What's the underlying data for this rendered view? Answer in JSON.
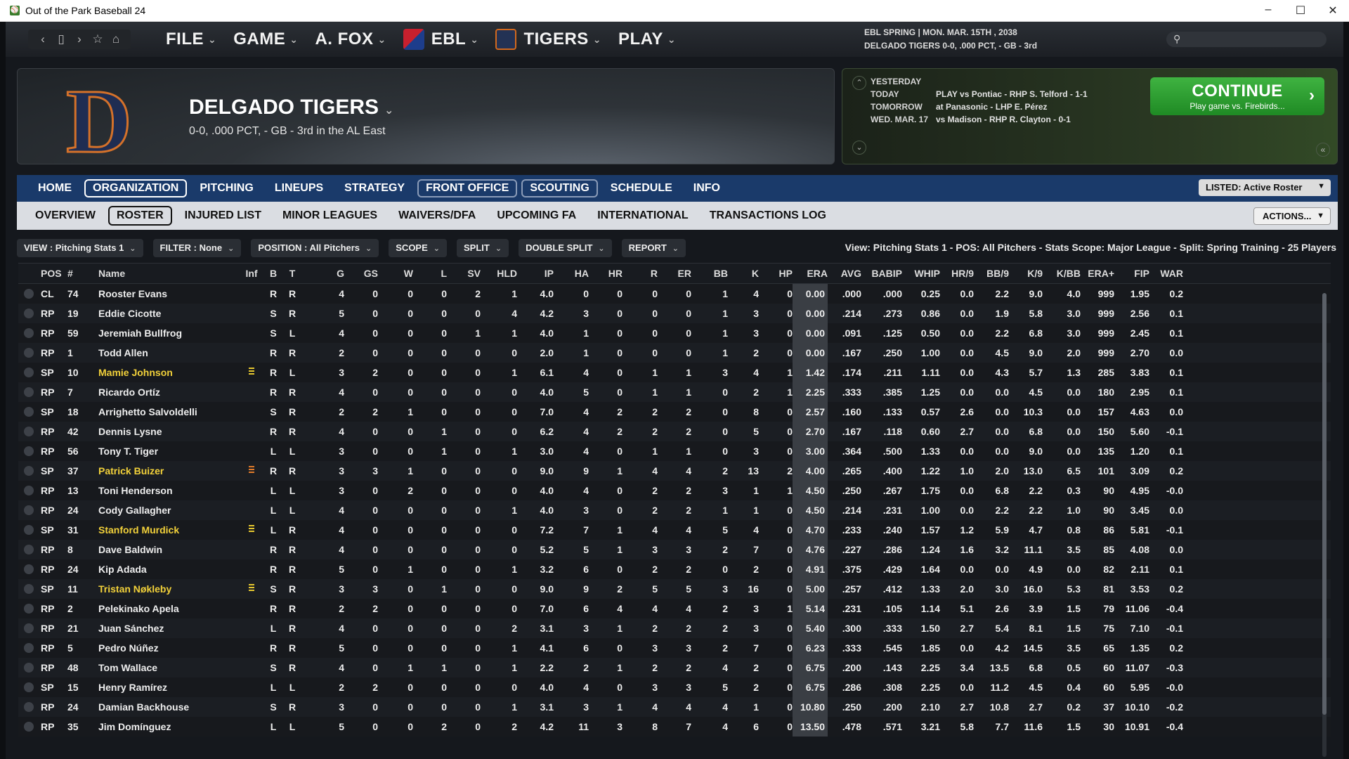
{
  "window": {
    "title": "Out of the Park Baseball 24",
    "controls": [
      "–",
      "☐",
      "✕"
    ]
  },
  "topnav": {
    "menus": [
      {
        "label": "FILE",
        "icon": ""
      },
      {
        "label": "GAME",
        "icon": ""
      },
      {
        "label": "A. FOX",
        "icon": ""
      },
      {
        "label": "EBL",
        "icon": "league-logo"
      },
      {
        "label": "TIGERS",
        "icon": "team-logo"
      },
      {
        "label": "PLAY",
        "icon": ""
      }
    ],
    "gameinfo_line1": "EBL SPRING  |  MON. MAR. 15TH , 2038",
    "gameinfo_line2": "DELGADO TIGERS  0-0, .000 PCT, - GB - 3rd",
    "search_placeholder": ""
  },
  "team": {
    "name": "DELGADO TIGERS",
    "record": "0-0, .000 PCT, - GB - 3rd in the AL East",
    "logo_letter": "D",
    "colors": {
      "primary": "#1f2d52",
      "accent": "#d4712a"
    }
  },
  "schedule": {
    "rows": [
      {
        "day": "YESTERDAY",
        "text": ""
      },
      {
        "day": "TODAY",
        "text": "PLAY vs Pontiac - RHP S. Telford - 1-1"
      },
      {
        "day": "TOMORROW",
        "text": "at Panasonic - LHP E. Pérez"
      },
      {
        "day": "WED. MAR. 17",
        "text": "vs Madison - RHP R. Clayton - 0-1"
      }
    ],
    "continue_label": "CONTINUE",
    "continue_sub": "Play game vs. Firebirds..."
  },
  "tabs_main": [
    {
      "label": "HOME",
      "style": ""
    },
    {
      "label": "ORGANIZATION",
      "style": "sel"
    },
    {
      "label": "PITCHING",
      "style": ""
    },
    {
      "label": "LINEUPS",
      "style": ""
    },
    {
      "label": "STRATEGY",
      "style": ""
    },
    {
      "label": "FRONT OFFICE",
      "style": "box"
    },
    {
      "label": "SCOUTING",
      "style": "box"
    },
    {
      "label": "SCHEDULE",
      "style": ""
    },
    {
      "label": "INFO",
      "style": ""
    }
  ],
  "listed_label": "LISTED: Active Roster",
  "tabs_sub": [
    {
      "label": "OVERVIEW",
      "style": ""
    },
    {
      "label": "ROSTER",
      "style": "sel"
    },
    {
      "label": "INJURED LIST",
      "style": ""
    },
    {
      "label": "MINOR LEAGUES",
      "style": ""
    },
    {
      "label": "WAIVERS/DFA",
      "style": ""
    },
    {
      "label": "UPCOMING FA",
      "style": ""
    },
    {
      "label": "INTERNATIONAL",
      "style": ""
    },
    {
      "label": "TRANSACTIONS LOG",
      "style": ""
    }
  ],
  "actions_label": "ACTIONS...",
  "filters": [
    {
      "label": "VIEW : Pitching Stats 1",
      "width": 0
    },
    {
      "label": "FILTER : None",
      "width": 0
    },
    {
      "label": "POSITION : All Pitchers",
      "width": 0
    },
    {
      "label": "SCOPE",
      "width": 0
    },
    {
      "label": "SPLIT",
      "width": 0
    },
    {
      "label": "DOUBLE SPLIT",
      "width": 0
    },
    {
      "label": "REPORT",
      "width": 0
    }
  ],
  "view_info": "View: Pitching Stats 1 - POS: All Pitchers - Stats Scope: Major League - Split: Spring Training - 25 Players",
  "table": {
    "columns": [
      "POS",
      "#",
      "Name",
      "Inf",
      "B",
      "T",
      "G",
      "GS",
      "W",
      "L",
      "SV",
      "HLD",
      "IP",
      "HA",
      "HR",
      "R",
      "ER",
      "BB",
      "K",
      "HP",
      "ERA",
      "AVG",
      "BABIP",
      "WHIP",
      "HR/9",
      "BB/9",
      "K/9",
      "K/BB",
      "ERA+",
      "FIP",
      "WAR"
    ],
    "rows": [
      [
        "CL",
        "74",
        "Rooster Evans",
        "",
        "R",
        "R",
        "4",
        "0",
        "0",
        "0",
        "2",
        "1",
        "4.0",
        "0",
        "0",
        "0",
        "0",
        "1",
        "4",
        "0",
        "0.00",
        ".000",
        ".000",
        "0.25",
        "0.0",
        "2.2",
        "9.0",
        "4.0",
        "999",
        "1.95",
        "0.2"
      ],
      [
        "RP",
        "19",
        "Eddie Cicotte",
        "",
        "S",
        "R",
        "5",
        "0",
        "0",
        "0",
        "0",
        "4",
        "4.2",
        "3",
        "0",
        "0",
        "0",
        "1",
        "3",
        "0",
        "0.00",
        ".214",
        ".273",
        "0.86",
        "0.0",
        "1.9",
        "5.8",
        "3.0",
        "999",
        "2.56",
        "0.1"
      ],
      [
        "RP",
        "59",
        "Jeremiah Bullfrog",
        "",
        "S",
        "L",
        "4",
        "0",
        "0",
        "0",
        "1",
        "1",
        "4.0",
        "1",
        "0",
        "0",
        "0",
        "1",
        "3",
        "0",
        "0.00",
        ".091",
        ".125",
        "0.50",
        "0.0",
        "2.2",
        "6.8",
        "3.0",
        "999",
        "2.45",
        "0.1"
      ],
      [
        "RP",
        "1",
        "Todd Allen",
        "",
        "R",
        "R",
        "2",
        "0",
        "0",
        "0",
        "0",
        "0",
        "2.0",
        "1",
        "0",
        "0",
        "0",
        "1",
        "2",
        "0",
        "0.00",
        ".167",
        ".250",
        "1.00",
        "0.0",
        "4.5",
        "9.0",
        "2.0",
        "999",
        "2.70",
        "0.0"
      ],
      [
        "SP",
        "10",
        "Mamie Johnson",
        "y",
        "R",
        "L",
        "3",
        "2",
        "0",
        "0",
        "0",
        "1",
        "6.1",
        "4",
        "0",
        "1",
        "1",
        "3",
        "4",
        "1",
        "1.42",
        ".174",
        ".211",
        "1.11",
        "0.0",
        "4.3",
        "5.7",
        "1.3",
        "285",
        "3.83",
        "0.1"
      ],
      [
        "RP",
        "7",
        "Ricardo Ortíz",
        "",
        "R",
        "R",
        "4",
        "0",
        "0",
        "0",
        "0",
        "0",
        "4.0",
        "5",
        "0",
        "1",
        "1",
        "0",
        "2",
        "1",
        "2.25",
        ".333",
        ".385",
        "1.25",
        "0.0",
        "0.0",
        "4.5",
        "0.0",
        "180",
        "2.95",
        "0.1"
      ],
      [
        "SP",
        "18",
        "Arrighetto Salvoldelli",
        "",
        "S",
        "R",
        "2",
        "2",
        "1",
        "0",
        "0",
        "0",
        "7.0",
        "4",
        "2",
        "2",
        "2",
        "0",
        "8",
        "0",
        "2.57",
        ".160",
        ".133",
        "0.57",
        "2.6",
        "0.0",
        "10.3",
        "0.0",
        "157",
        "4.63",
        "0.0"
      ],
      [
        "RP",
        "42",
        "Dennis Lysne",
        "",
        "R",
        "R",
        "4",
        "0",
        "0",
        "1",
        "0",
        "0",
        "6.2",
        "4",
        "2",
        "2",
        "2",
        "0",
        "5",
        "0",
        "2.70",
        ".167",
        ".118",
        "0.60",
        "2.7",
        "0.0",
        "6.8",
        "0.0",
        "150",
        "5.60",
        "-0.1"
      ],
      [
        "RP",
        "56",
        "Tony T. Tiger",
        "",
        "L",
        "L",
        "3",
        "0",
        "0",
        "1",
        "0",
        "1",
        "3.0",
        "4",
        "0",
        "1",
        "1",
        "0",
        "3",
        "0",
        "3.00",
        ".364",
        ".500",
        "1.33",
        "0.0",
        "0.0",
        "9.0",
        "0.0",
        "135",
        "1.20",
        "0.1"
      ],
      [
        "SP",
        "37",
        "Patrick Buizer",
        "o",
        "R",
        "R",
        "3",
        "3",
        "1",
        "0",
        "0",
        "0",
        "9.0",
        "9",
        "1",
        "4",
        "4",
        "2",
        "13",
        "2",
        "4.00",
        ".265",
        ".400",
        "1.22",
        "1.0",
        "2.0",
        "13.0",
        "6.5",
        "101",
        "3.09",
        "0.2"
      ],
      [
        "RP",
        "13",
        "Toni Henderson",
        "",
        "L",
        "L",
        "3",
        "0",
        "2",
        "0",
        "0",
        "0",
        "4.0",
        "4",
        "0",
        "2",
        "2",
        "3",
        "1",
        "1",
        "4.50",
        ".250",
        ".267",
        "1.75",
        "0.0",
        "6.8",
        "2.2",
        "0.3",
        "90",
        "4.95",
        "-0.0"
      ],
      [
        "RP",
        "24",
        "Cody Gallagher",
        "",
        "L",
        "L",
        "4",
        "0",
        "0",
        "0",
        "0",
        "1",
        "4.0",
        "3",
        "0",
        "2",
        "2",
        "1",
        "1",
        "0",
        "4.50",
        ".214",
        ".231",
        "1.00",
        "0.0",
        "2.2",
        "2.2",
        "1.0",
        "90",
        "3.45",
        "0.0"
      ],
      [
        "SP",
        "31",
        "Stanford Murdick",
        "y",
        "L",
        "R",
        "4",
        "0",
        "0",
        "0",
        "0",
        "0",
        "7.2",
        "7",
        "1",
        "4",
        "4",
        "5",
        "4",
        "0",
        "4.70",
        ".233",
        ".240",
        "1.57",
        "1.2",
        "5.9",
        "4.7",
        "0.8",
        "86",
        "5.81",
        "-0.1"
      ],
      [
        "RP",
        "8",
        "Dave Baldwin",
        "",
        "R",
        "R",
        "4",
        "0",
        "0",
        "0",
        "0",
        "0",
        "5.2",
        "5",
        "1",
        "3",
        "3",
        "2",
        "7",
        "0",
        "4.76",
        ".227",
        ".286",
        "1.24",
        "1.6",
        "3.2",
        "11.1",
        "3.5",
        "85",
        "4.08",
        "0.0"
      ],
      [
        "RP",
        "24",
        "Kip Adada",
        "",
        "R",
        "R",
        "5",
        "0",
        "1",
        "0",
        "0",
        "1",
        "3.2",
        "6",
        "0",
        "2",
        "2",
        "0",
        "2",
        "0",
        "4.91",
        ".375",
        ".429",
        "1.64",
        "0.0",
        "0.0",
        "4.9",
        "0.0",
        "82",
        "2.11",
        "0.1"
      ],
      [
        "SP",
        "11",
        "Tristan Nøkleby",
        "y",
        "S",
        "R",
        "3",
        "3",
        "0",
        "1",
        "0",
        "0",
        "9.0",
        "9",
        "2",
        "5",
        "5",
        "3",
        "16",
        "0",
        "5.00",
        ".257",
        ".412",
        "1.33",
        "2.0",
        "3.0",
        "16.0",
        "5.3",
        "81",
        "3.53",
        "0.2"
      ],
      [
        "RP",
        "2",
        "Pelekinako Apela",
        "",
        "R",
        "R",
        "2",
        "2",
        "0",
        "0",
        "0",
        "0",
        "7.0",
        "6",
        "4",
        "4",
        "4",
        "2",
        "3",
        "1",
        "5.14",
        ".231",
        ".105",
        "1.14",
        "5.1",
        "2.6",
        "3.9",
        "1.5",
        "79",
        "11.06",
        "-0.4"
      ],
      [
        "RP",
        "21",
        "Juan Sánchez",
        "",
        "L",
        "R",
        "4",
        "0",
        "0",
        "0",
        "0",
        "2",
        "3.1",
        "3",
        "1",
        "2",
        "2",
        "2",
        "3",
        "0",
        "5.40",
        ".300",
        ".333",
        "1.50",
        "2.7",
        "5.4",
        "8.1",
        "1.5",
        "75",
        "7.10",
        "-0.1"
      ],
      [
        "RP",
        "5",
        "Pedro Núñez",
        "",
        "R",
        "R",
        "5",
        "0",
        "0",
        "0",
        "0",
        "1",
        "4.1",
        "6",
        "0",
        "3",
        "3",
        "2",
        "7",
        "0",
        "6.23",
        ".333",
        ".545",
        "1.85",
        "0.0",
        "4.2",
        "14.5",
        "3.5",
        "65",
        "1.35",
        "0.2"
      ],
      [
        "RP",
        "48",
        "Tom Wallace",
        "",
        "S",
        "R",
        "4",
        "0",
        "1",
        "1",
        "0",
        "1",
        "2.2",
        "2",
        "1",
        "2",
        "2",
        "4",
        "2",
        "0",
        "6.75",
        ".200",
        ".143",
        "2.25",
        "3.4",
        "13.5",
        "6.8",
        "0.5",
        "60",
        "11.07",
        "-0.3"
      ],
      [
        "SP",
        "15",
        "Henry Ramírez",
        "",
        "L",
        "L",
        "2",
        "2",
        "0",
        "0",
        "0",
        "0",
        "4.0",
        "4",
        "0",
        "3",
        "3",
        "5",
        "2",
        "0",
        "6.75",
        ".286",
        ".308",
        "2.25",
        "0.0",
        "11.2",
        "4.5",
        "0.4",
        "60",
        "5.95",
        "-0.0"
      ],
      [
        "RP",
        "24",
        "Damian Backhouse",
        "",
        "S",
        "R",
        "3",
        "0",
        "0",
        "0",
        "0",
        "1",
        "3.1",
        "3",
        "1",
        "4",
        "4",
        "4",
        "1",
        "0",
        "10.80",
        ".250",
        ".200",
        "2.10",
        "2.7",
        "10.8",
        "2.7",
        "0.2",
        "37",
        "10.10",
        "-0.2"
      ],
      [
        "RP",
        "35",
        "Jim Domínguez",
        "",
        "L",
        "L",
        "5",
        "0",
        "0",
        "2",
        "0",
        "2",
        "4.2",
        "11",
        "3",
        "8",
        "7",
        "4",
        "6",
        "0",
        "13.50",
        ".478",
        ".571",
        "3.21",
        "5.8",
        "7.7",
        "11.6",
        "1.5",
        "30",
        "10.91",
        "-0.4"
      ]
    ]
  }
}
